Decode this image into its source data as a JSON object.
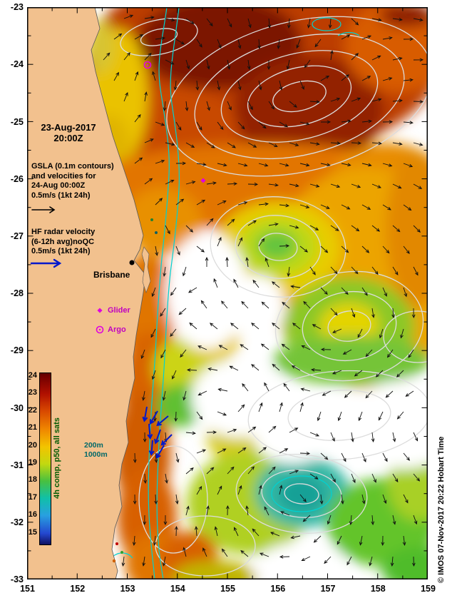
{
  "annotations": {
    "datetime_date": "23-Aug-2017",
    "datetime_time": "20:00Z",
    "gsla_lines": [
      "GSLA (0.1m contours)",
      "and velocities for",
      "24-Aug 00:00Z",
      "0.5m/s (1kt 24h)"
    ],
    "hf_lines": [
      "HF radar velocity",
      "(6-12h avg)noQC",
      "0.5m/s (1kt 24h)"
    ],
    "city": "Brisbane",
    "legend_glider": "Glider",
    "legend_argo": "Argo",
    "isobath_200": "200m",
    "isobath_1000": "1000m",
    "copyright": "© IMOS 07-Nov-2017 20:22 Hobart Time"
  },
  "colorbar": {
    "label": "4h comp, p50, all sats",
    "ticks": [
      "24",
      "23",
      "22",
      "21",
      "20",
      "19",
      "18",
      "17",
      "16",
      "15"
    ]
  },
  "axes": {
    "x": [
      "151",
      "152",
      "153",
      "154",
      "155",
      "156",
      "157",
      "158",
      "159"
    ],
    "y": [
      "-23",
      "-24",
      "-25",
      "-26",
      "-27",
      "-28",
      "-29",
      "-30",
      "-31",
      "-32",
      "-33"
    ]
  },
  "colors": {
    "land": "#f2c18e",
    "marker_magenta": "#e000e0",
    "hf_arrow_blue": "#0018cc",
    "bathymetry_cyan": "#00d2d2",
    "sla_contour": "#dcdcdc",
    "colorbar_title_green": "#015a01"
  }
}
